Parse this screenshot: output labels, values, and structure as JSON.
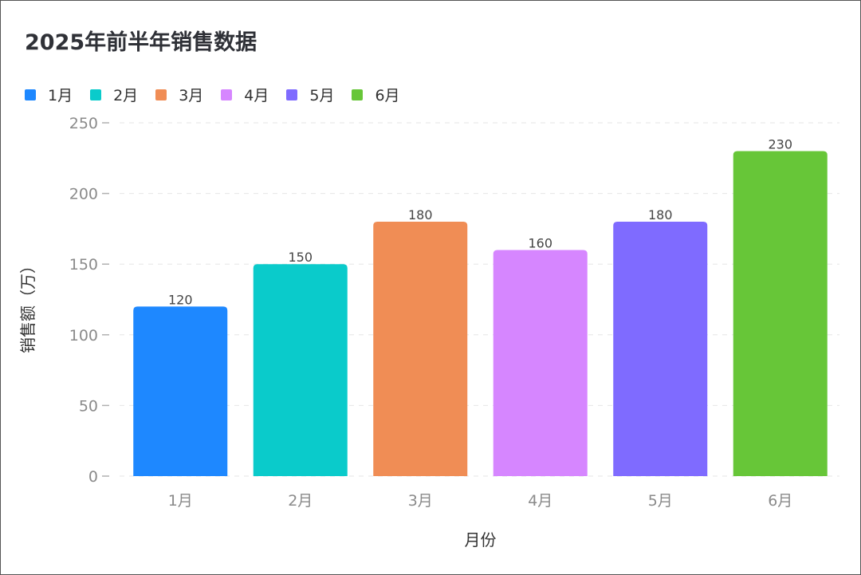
{
  "chart_data": {
    "type": "bar",
    "title": "2025年前半年销售数据",
    "xlabel": "月份",
    "ylabel": "销售额（万）",
    "categories": [
      "1月",
      "2月",
      "3月",
      "4月",
      "5月",
      "6月"
    ],
    "values": [
      120,
      150,
      180,
      160,
      180,
      230
    ],
    "colors": [
      "#1e88ff",
      "#0acbcb",
      "#f08d55",
      "#d686ff",
      "#7f6bff",
      "#67c638"
    ],
    "ylim": [
      0,
      250
    ],
    "yticks": [
      0,
      50,
      100,
      150,
      200,
      250
    ],
    "grid": true,
    "legend_position": "top-left",
    "legend": [
      "1月",
      "2月",
      "3月",
      "4月",
      "5月",
      "6月"
    ]
  }
}
